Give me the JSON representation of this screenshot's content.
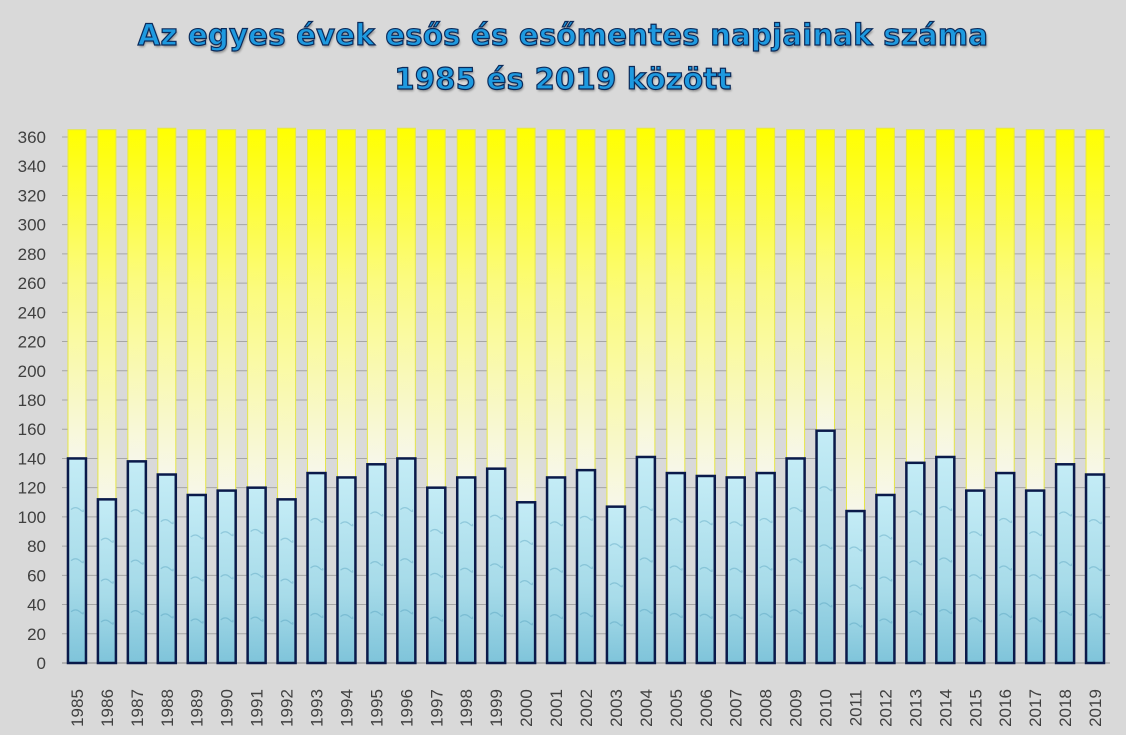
{
  "chart_data": {
    "type": "bar",
    "stacked": true,
    "title": [
      "Az egyes évek esős és esőmentes napjainak száma",
      "1985 és 2019 között"
    ],
    "xlabel": "",
    "ylabel": "",
    "ylim": [
      0,
      360
    ],
    "yticks": [
      0,
      20,
      40,
      60,
      80,
      100,
      120,
      140,
      160,
      180,
      200,
      220,
      240,
      260,
      280,
      300,
      320,
      340,
      360
    ],
    "grid": true,
    "legend": "none",
    "categories": [
      "1985",
      "1986",
      "1987",
      "1988",
      "1989",
      "1990",
      "1991",
      "1992",
      "1993",
      "1994",
      "1995",
      "1996",
      "1997",
      "1998",
      "1999",
      "2000",
      "2001",
      "2002",
      "2003",
      "2004",
      "2005",
      "2006",
      "2007",
      "2008",
      "2009",
      "2010",
      "2011",
      "2012",
      "2013",
      "2014",
      "2015",
      "2016",
      "2017",
      "2018",
      "2019"
    ],
    "series": [
      {
        "values": [
          140,
          112,
          138,
          129,
          115,
          118,
          120,
          112,
          130,
          127,
          136,
          140,
          120,
          127,
          133,
          110,
          127,
          132,
          107,
          141,
          130,
          128,
          127,
          130,
          140,
          159,
          104,
          115,
          137,
          141,
          118,
          130,
          118,
          136,
          129
        ],
        "color": "#a8dcea"
      },
      {
        "values": [
          225,
          253,
          227,
          237,
          250,
          247,
          245,
          254,
          235,
          238,
          229,
          226,
          245,
          238,
          232,
          256,
          238,
          233,
          258,
          225,
          235,
          237,
          238,
          236,
          225,
          206,
          261,
          251,
          228,
          224,
          247,
          236,
          247,
          229,
          236
        ],
        "color": "#ffff00"
      }
    ]
  }
}
